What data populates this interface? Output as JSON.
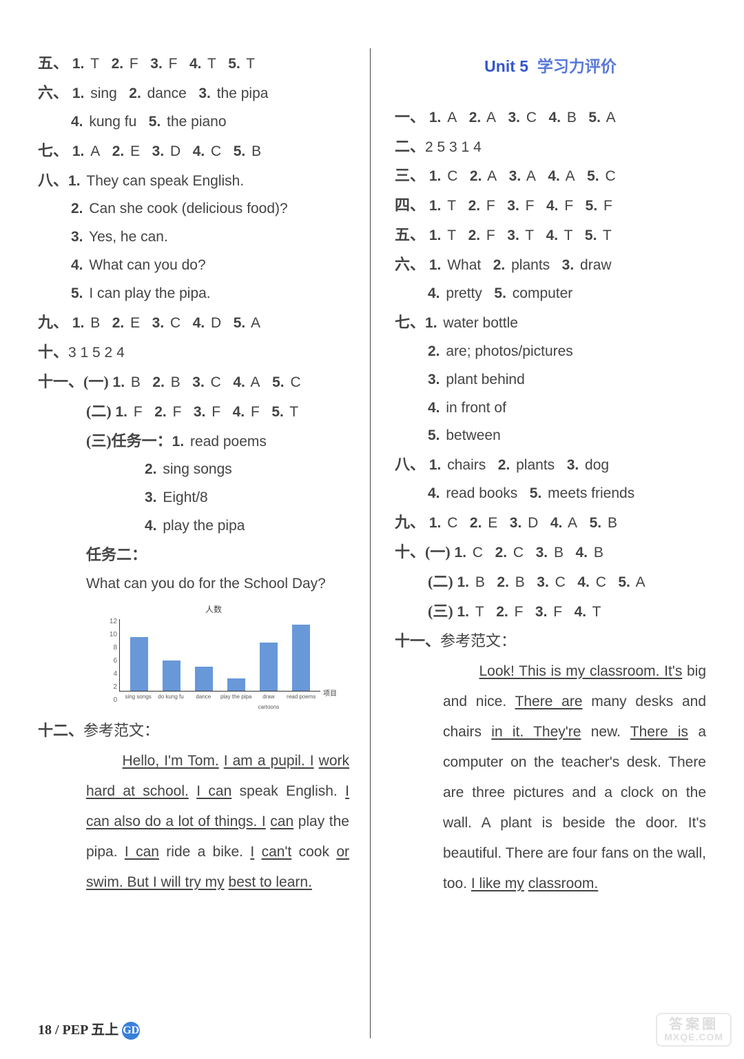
{
  "left": {
    "s5": {
      "label": "五、",
      "items": [
        "T",
        "F",
        "F",
        "T",
        "T"
      ]
    },
    "s6": {
      "label": "六、",
      "line1": [
        [
          "1.",
          "sing"
        ],
        [
          "2.",
          "dance"
        ],
        [
          "3.",
          "the pipa"
        ]
      ],
      "line2": [
        [
          "4.",
          "kung fu"
        ],
        [
          "5.",
          "the piano"
        ]
      ]
    },
    "s7": {
      "label": "七、",
      "items": [
        "A",
        "E",
        "D",
        "C",
        "B"
      ]
    },
    "s8": {
      "label": "八、",
      "lines": [
        "They can speak English.",
        "Can she cook (delicious food)?",
        "Yes, he can.",
        "What can you do?",
        "I can play the pipa."
      ]
    },
    "s9": {
      "label": "九、",
      "items": [
        "B",
        "E",
        "C",
        "D",
        "A"
      ]
    },
    "s10": {
      "label": "十、",
      "seq": "3  1  5  2  4"
    },
    "s11": {
      "label": "十一、",
      "g1": {
        "label": "(一)",
        "items": [
          "B",
          "B",
          "C",
          "A",
          "C"
        ]
      },
      "g2": {
        "label": "(二)",
        "items": [
          "F",
          "F",
          "F",
          "F",
          "T"
        ]
      },
      "g3": {
        "label": "(三)任务一：",
        "lines": [
          "read poems",
          "sing songs",
          "Eight/8",
          "play the pipa"
        ]
      },
      "task2": "任务二：",
      "task2q": "What can you do for the School Day?"
    },
    "chart": {
      "title": "人数",
      "xunit": "项目",
      "yTicks": [
        "12",
        "10",
        "8",
        "6",
        "4",
        "2",
        "0"
      ],
      "categories": [
        "sing songs",
        "do kung fu",
        "dance",
        "play the pipa",
        "draw cartoons",
        "read poems"
      ],
      "values": [
        9,
        5,
        4,
        2,
        8,
        11
      ],
      "ymax": 12,
      "barColor": "#6898d8"
    },
    "s12": {
      "label": "十二、",
      "sub": "参考范文：",
      "essay": [
        {
          "t": "Hello, I'm Tom.",
          "u": true
        },
        {
          "t": " "
        },
        {
          "t": "I am a pupil. I",
          "u": true
        },
        {
          "t": " "
        },
        {
          "t": "work hard at school.",
          "u": true
        },
        {
          "t": " "
        },
        {
          "t": "I can",
          "u": true
        },
        {
          "t": " speak English. "
        },
        {
          "t": "I can also do a lot of things. I",
          "u": true
        },
        {
          "t": " "
        },
        {
          "t": "can",
          "u": true
        },
        {
          "t": " play the pipa. "
        },
        {
          "t": "I can",
          "u": true
        },
        {
          "t": " ride a bike. "
        },
        {
          "t": "I",
          "u": true
        },
        {
          "t": " "
        },
        {
          "t": "can't",
          "u": true
        },
        {
          "t": " cook "
        },
        {
          "t": "or swim. But I will try my",
          "u": true
        },
        {
          "t": " "
        },
        {
          "t": "best to learn.",
          "u": true
        }
      ]
    }
  },
  "right": {
    "heading": {
      "unit": "Unit 5",
      "rest": "学习力评价"
    },
    "s1": {
      "label": "一、",
      "items": [
        "A",
        "A",
        "C",
        "B",
        "A"
      ]
    },
    "s2": {
      "label": "二、",
      "seq": "2  5  3  1  4"
    },
    "s3": {
      "label": "三、",
      "items": [
        "C",
        "A",
        "A",
        "A",
        "C"
      ]
    },
    "s4": {
      "label": "四、",
      "items": [
        "T",
        "F",
        "F",
        "F",
        "F"
      ]
    },
    "s5": {
      "label": "五、",
      "items": [
        "T",
        "F",
        "T",
        "T",
        "T"
      ]
    },
    "s6": {
      "label": "六、",
      "line1": [
        [
          "1.",
          "What"
        ],
        [
          "2.",
          "plants"
        ],
        [
          "3.",
          "draw"
        ]
      ],
      "line2": [
        [
          "4.",
          "pretty"
        ],
        [
          "5.",
          "computer"
        ]
      ]
    },
    "s7": {
      "label": "七、",
      "lines": [
        "water bottle",
        "are; photos/pictures",
        "plant behind",
        "in front of",
        "between"
      ]
    },
    "s8": {
      "label": "八、",
      "line1": [
        [
          "1.",
          "chairs"
        ],
        [
          "2.",
          "plants"
        ],
        [
          "3.",
          "dog"
        ]
      ],
      "line2": [
        [
          "4.",
          "read books"
        ],
        [
          "5.",
          "meets friends"
        ]
      ]
    },
    "s9": {
      "label": "九、",
      "items": [
        "C",
        "E",
        "D",
        "A",
        "B"
      ]
    },
    "s10": {
      "label": "十、",
      "g1": {
        "label": "(一)",
        "items": [
          "C",
          "C",
          "B",
          "B"
        ]
      },
      "g2": {
        "label": "(二)",
        "items": [
          "B",
          "B",
          "C",
          "C",
          "A"
        ]
      },
      "g3": {
        "label": "(三)",
        "items": [
          "T",
          "F",
          "F",
          "T"
        ]
      }
    },
    "s11": {
      "label": "十一、",
      "sub": "参考范文：",
      "essay": [
        {
          "t": "Look! This is my classroom. It's",
          "u": true
        },
        {
          "t": " big and nice. "
        },
        {
          "t": "There are",
          "u": true
        },
        {
          "t": " many desks and chairs "
        },
        {
          "t": "in it. They're",
          "u": true
        },
        {
          "t": " new. "
        },
        {
          "t": "There is",
          "u": true
        },
        {
          "t": " a computer on the  teacher's desk. There are three pictures and a clock on the wall. A plant is beside the door. It's beautiful. There are four fans on the wall, too. "
        },
        {
          "t": "I like my",
          "u": true
        },
        {
          "t": " "
        },
        {
          "t": "classroom.",
          "u": true
        }
      ]
    }
  },
  "footer": {
    "page": "18 / PEP 五上",
    "badge": "GD"
  },
  "watermark": {
    "cn": "答案圈",
    "en": "MXQE.COM"
  }
}
